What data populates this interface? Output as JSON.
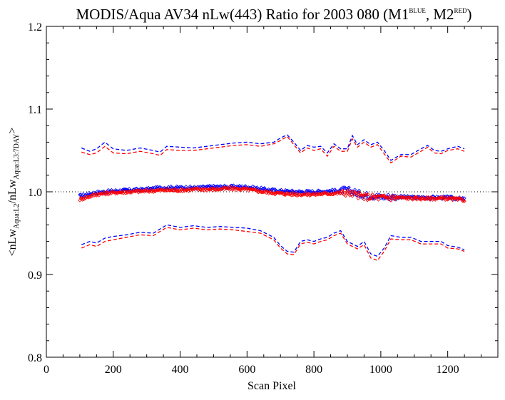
{
  "title": {
    "main": "MODIS/Aqua AV34 nLw(443) Ratio for 2003 080 (M1",
    "sup1": "BLUE",
    "mid": ", M2",
    "sup2": "RED",
    "end": ")"
  },
  "axes": {
    "xlabel": "Scan Pixel",
    "ylabel_parts": {
      "a": "<nLw",
      "a_sub": "Aqua:L2",
      "b": "/nLw",
      "b_sub": "Aqua:L3:7DAY",
      "c": ">"
    }
  },
  "colors": {
    "m1": "#0000ff",
    "m2": "#ff0000",
    "reference": "#000000"
  },
  "chart_data": {
    "type": "scatter",
    "xlim": [
      0,
      1350
    ],
    "ylim": [
      0.8,
      1.2
    ],
    "xticks": [
      "0",
      "200",
      "400",
      "600",
      "800",
      "1000",
      "1200"
    ],
    "xtick_values": [
      0,
      200,
      400,
      600,
      800,
      1000,
      1200
    ],
    "yticks": [
      "0.8",
      "0.9",
      "1.0",
      "1.1",
      "1.2"
    ],
    "ytick_values": [
      0.8,
      0.9,
      1.0,
      1.1,
      1.2
    ],
    "reference_line": 1.0,
    "grid": false,
    "series": [
      {
        "name": "M1",
        "color": "#0000ff",
        "style": "points",
        "x": [
          100,
          150,
          200,
          250,
          300,
          350,
          400,
          450,
          500,
          550,
          600,
          650,
          700,
          750,
          800,
          850,
          900,
          950,
          1000,
          1050,
          1100,
          1150,
          1200,
          1250
        ],
        "values": [
          0.995,
          0.999,
          1.001,
          1.002,
          1.003,
          1.005,
          1.005,
          1.005,
          1.006,
          1.006,
          1.006,
          1.003,
          1.001,
          1.0,
          1.0,
          1.001,
          1.002,
          0.996,
          0.994,
          0.994,
          0.993,
          0.993,
          0.993,
          0.991
        ]
      },
      {
        "name": "M2",
        "color": "#ff0000",
        "style": "points",
        "x": [
          100,
          150,
          200,
          250,
          300,
          350,
          400,
          450,
          500,
          550,
          600,
          650,
          700,
          750,
          800,
          850,
          900,
          950,
          1000,
          1050,
          1100,
          1150,
          1200,
          1250
        ],
        "values": [
          0.991,
          0.997,
          0.999,
          1.0,
          1.001,
          1.002,
          1.002,
          1.003,
          1.003,
          1.004,
          1.003,
          1.0,
          0.998,
          0.997,
          0.997,
          0.998,
          0.999,
          0.994,
          0.993,
          0.993,
          0.992,
          0.992,
          0.992,
          0.99
        ]
      },
      {
        "name": "M1 upper",
        "color": "#0000ff",
        "style": "dashed",
        "x": [
          105,
          130,
          150,
          175,
          200,
          240,
          280,
          320,
          340,
          360,
          400,
          440,
          480,
          520,
          560,
          600,
          640,
          680,
          700,
          720,
          740,
          760,
          780,
          800,
          820,
          840,
          860,
          880,
          900,
          915,
          930,
          950,
          970,
          990,
          1010,
          1030,
          1060,
          1090,
          1120,
          1140,
          1160,
          1180,
          1200,
          1230,
          1250
        ],
        "values": [
          1.053,
          1.049,
          1.052,
          1.06,
          1.052,
          1.05,
          1.053,
          1.05,
          1.048,
          1.055,
          1.054,
          1.053,
          1.055,
          1.057,
          1.059,
          1.06,
          1.058,
          1.06,
          1.065,
          1.069,
          1.06,
          1.05,
          1.056,
          1.054,
          1.055,
          1.047,
          1.058,
          1.052,
          1.052,
          1.068,
          1.057,
          1.063,
          1.057,
          1.06,
          1.05,
          1.038,
          1.045,
          1.045,
          1.052,
          1.056,
          1.05,
          1.049,
          1.052,
          1.055,
          1.052
        ]
      },
      {
        "x": [
          105,
          130,
          150,
          175,
          200,
          240,
          280,
          320,
          340,
          360,
          400,
          440,
          480,
          520,
          560,
          600,
          640,
          680,
          700,
          720,
          740,
          760,
          780,
          800,
          820,
          840,
          860,
          880,
          900,
          915,
          930,
          950,
          970,
          990,
          1010,
          1030,
          1060,
          1090,
          1120,
          1140,
          1160,
          1180,
          1200,
          1230,
          1250
        ],
        "values": [
          1.048,
          1.045,
          1.047,
          1.055,
          1.047,
          1.046,
          1.049,
          1.046,
          1.044,
          1.051,
          1.05,
          1.05,
          1.052,
          1.054,
          1.056,
          1.057,
          1.055,
          1.058,
          1.062,
          1.067,
          1.057,
          1.047,
          1.053,
          1.05,
          1.052,
          1.043,
          1.055,
          1.049,
          1.049,
          1.064,
          1.054,
          1.06,
          1.054,
          1.057,
          1.046,
          1.035,
          1.043,
          1.042,
          1.049,
          1.054,
          1.047,
          1.046,
          1.05,
          1.052,
          1.049
        ],
        "color": "#ff0000",
        "style": "dashed"
      },
      {
        "name": "M1 lower",
        "color": "#0000ff",
        "style": "dashed",
        "x": [
          105,
          130,
          150,
          175,
          200,
          240,
          280,
          320,
          340,
          360,
          400,
          440,
          480,
          520,
          560,
          600,
          640,
          680,
          700,
          720,
          740,
          760,
          780,
          800,
          820,
          840,
          860,
          880,
          900,
          930,
          950,
          970,
          990,
          1010,
          1030,
          1060,
          1090,
          1120,
          1150,
          1180,
          1200,
          1230,
          1250
        ],
        "values": [
          0.936,
          0.94,
          0.938,
          0.944,
          0.946,
          0.948,
          0.951,
          0.95,
          0.955,
          0.96,
          0.957,
          0.959,
          0.957,
          0.958,
          0.957,
          0.956,
          0.953,
          0.945,
          0.935,
          0.928,
          0.927,
          0.94,
          0.942,
          0.94,
          0.943,
          0.945,
          0.95,
          0.953,
          0.94,
          0.934,
          0.94,
          0.925,
          0.922,
          0.932,
          0.947,
          0.945,
          0.945,
          0.94,
          0.94,
          0.94,
          0.935,
          0.933,
          0.93
        ]
      },
      {
        "x": [
          105,
          130,
          150,
          175,
          200,
          240,
          280,
          320,
          340,
          360,
          400,
          440,
          480,
          520,
          560,
          600,
          640,
          680,
          700,
          720,
          740,
          760,
          780,
          800,
          820,
          840,
          860,
          880,
          900,
          930,
          950,
          970,
          990,
          1010,
          1030,
          1060,
          1090,
          1120,
          1150,
          1180,
          1200,
          1230,
          1250
        ],
        "values": [
          0.932,
          0.936,
          0.934,
          0.94,
          0.942,
          0.945,
          0.948,
          0.947,
          0.952,
          0.957,
          0.954,
          0.956,
          0.954,
          0.955,
          0.954,
          0.952,
          0.95,
          0.942,
          0.932,
          0.925,
          0.924,
          0.937,
          0.939,
          0.937,
          0.94,
          0.942,
          0.947,
          0.95,
          0.937,
          0.931,
          0.936,
          0.92,
          0.917,
          0.928,
          0.943,
          0.942,
          0.942,
          0.937,
          0.937,
          0.937,
          0.932,
          0.931,
          0.928
        ],
        "color": "#ff0000",
        "style": "dashed"
      }
    ]
  }
}
